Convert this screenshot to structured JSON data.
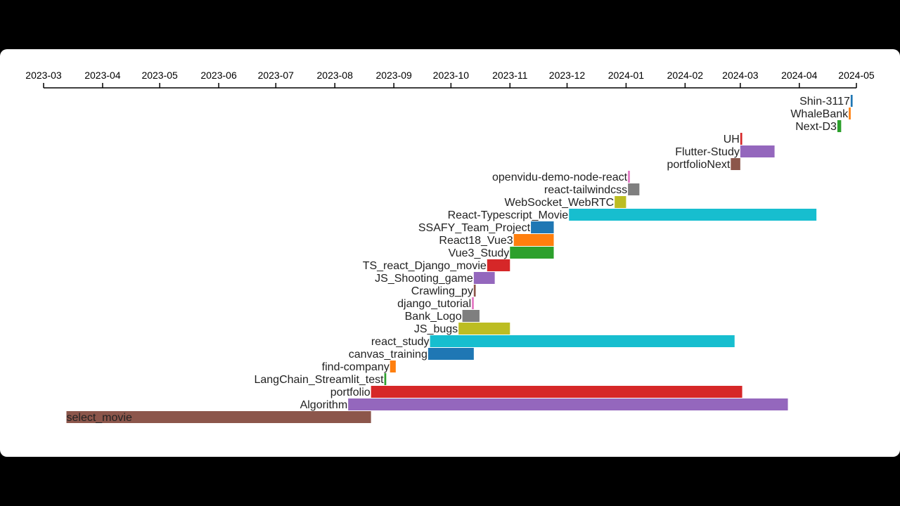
{
  "chart_data": {
    "type": "gantt",
    "x_axis": {
      "position": "top",
      "range": [
        "2023-03",
        "2024-05"
      ],
      "ticks": [
        "2023-03",
        "2023-04",
        "2023-05",
        "2023-06",
        "2023-07",
        "2023-08",
        "2023-09",
        "2023-10",
        "2023-11",
        "2023-12",
        "2024-01",
        "2024-02",
        "2024-03",
        "2024-04",
        "2024-05"
      ]
    },
    "tasks": [
      {
        "name": "Shin-3117",
        "start": "2024-04-28",
        "end": "2024-04-29",
        "color": "#1f77b4"
      },
      {
        "name": "WhaleBank",
        "start": "2024-04-27",
        "end": "2024-04-28",
        "color": "#ff7f0e"
      },
      {
        "name": "Next-D3",
        "start": "2024-04-21",
        "end": "2024-04-23",
        "color": "#2ca02c"
      },
      {
        "name": "UH",
        "start": "2024-03-01",
        "end": "2024-03-02",
        "color": "#d62728"
      },
      {
        "name": "Flutter-Study",
        "start": "2024-03-01",
        "end": "2024-03-19",
        "color": "#9467bd"
      },
      {
        "name": "portfolioNext",
        "start": "2024-02-25",
        "end": "2024-03-01",
        "color": "#8c564b"
      },
      {
        "name": "openvidu-demo-node-react",
        "start": "2024-01-02",
        "end": "2024-01-03",
        "color": "#e377c2"
      },
      {
        "name": "react-tailwindcss",
        "start": "2024-01-02",
        "end": "2024-01-08",
        "color": "#7f7f7f"
      },
      {
        "name": "WebSocket_WebRTC",
        "start": "2023-12-26",
        "end": "2024-01-01",
        "color": "#bcbd22"
      },
      {
        "name": "React-Typescript_Movie",
        "start": "2023-12-02",
        "end": "2024-04-10",
        "color": "#17becf"
      },
      {
        "name": "SSAFY_Team_Project",
        "start": "2023-11-12",
        "end": "2023-11-24",
        "color": "#1f77b4"
      },
      {
        "name": "React18_Vue3",
        "start": "2023-11-03",
        "end": "2023-11-24",
        "color": "#ff7f0e"
      },
      {
        "name": "Vue3_Study",
        "start": "2023-11-01",
        "end": "2023-11-24",
        "color": "#2ca02c"
      },
      {
        "name": "TS_react_Django_movie",
        "start": "2023-10-20",
        "end": "2023-11-01",
        "color": "#d62728"
      },
      {
        "name": "JS_Shooting_game",
        "start": "2023-10-13",
        "end": "2023-10-24",
        "color": "#9467bd"
      },
      {
        "name": "Crawling_py",
        "start": "2023-10-13",
        "end": "2023-10-14",
        "color": "#8c564b"
      },
      {
        "name": "django_tutorial",
        "start": "2023-10-12",
        "end": "2023-10-13",
        "color": "#e377c2"
      },
      {
        "name": "Bank_Logo",
        "start": "2023-10-07",
        "end": "2023-10-16",
        "color": "#7f7f7f"
      },
      {
        "name": "JS_bugs",
        "start": "2023-10-05",
        "end": "2023-11-01",
        "color": "#bcbd22"
      },
      {
        "name": "react_study",
        "start": "2023-09-20",
        "end": "2024-02-27",
        "color": "#17becf"
      },
      {
        "name": "canvas_training",
        "start": "2023-09-19",
        "end": "2023-10-13",
        "color": "#1f77b4"
      },
      {
        "name": "find-company",
        "start": "2023-08-30",
        "end": "2023-09-02",
        "color": "#ff7f0e"
      },
      {
        "name": "LangChain_Streamlit_test",
        "start": "2023-08-27",
        "end": "2023-08-28",
        "color": "#2ca02c"
      },
      {
        "name": "portfolio",
        "start": "2023-08-20",
        "end": "2024-03-02",
        "color": "#d62728"
      },
      {
        "name": "Algorithm",
        "start": "2023-08-08",
        "end": "2024-03-26",
        "color": "#9467bd"
      },
      {
        "name": "select_movie",
        "start": "2023-03-13",
        "end": "2023-08-20",
        "color": "#8c564b"
      }
    ]
  }
}
